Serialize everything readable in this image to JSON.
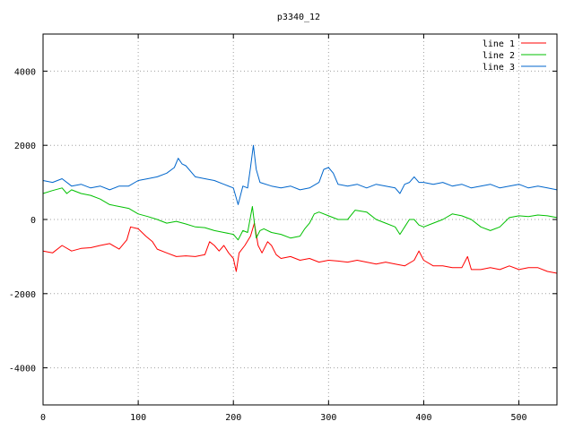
{
  "chart_data": {
    "type": "line",
    "title": "p3340_12",
    "xlabel": "",
    "ylabel": "",
    "xlim": [
      0,
      540
    ],
    "ylim": [
      -5000,
      5000
    ],
    "x_ticks": [
      0,
      100,
      200,
      300,
      400,
      500
    ],
    "y_ticks": [
      -4000,
      -2000,
      0,
      2000,
      4000
    ],
    "grid": true,
    "legend_position": "top-right",
    "series": [
      {
        "name": "line 1",
        "color": "#ff0000",
        "points": [
          [
            0,
            -850
          ],
          [
            10,
            -900
          ],
          [
            20,
            -700
          ],
          [
            30,
            -850
          ],
          [
            40,
            -780
          ],
          [
            50,
            -760
          ],
          [
            60,
            -700
          ],
          [
            70,
            -650
          ],
          [
            80,
            -800
          ],
          [
            88,
            -550
          ],
          [
            92,
            -200
          ],
          [
            100,
            -250
          ],
          [
            108,
            -450
          ],
          [
            115,
            -600
          ],
          [
            120,
            -800
          ],
          [
            130,
            -900
          ],
          [
            140,
            -1000
          ],
          [
            150,
            -980
          ],
          [
            160,
            -1000
          ],
          [
            170,
            -950
          ],
          [
            175,
            -600
          ],
          [
            180,
            -700
          ],
          [
            185,
            -850
          ],
          [
            190,
            -700
          ],
          [
            195,
            -900
          ],
          [
            200,
            -1050
          ],
          [
            203,
            -1400
          ],
          [
            206,
            -900
          ],
          [
            212,
            -700
          ],
          [
            218,
            -450
          ],
          [
            222,
            -100
          ],
          [
            226,
            -700
          ],
          [
            230,
            -900
          ],
          [
            236,
            -600
          ],
          [
            240,
            -700
          ],
          [
            245,
            -950
          ],
          [
            250,
            -1050
          ],
          [
            260,
            -1000
          ],
          [
            270,
            -1100
          ],
          [
            280,
            -1050
          ],
          [
            290,
            -1150
          ],
          [
            300,
            -1100
          ],
          [
            310,
            -1120
          ],
          [
            320,
            -1150
          ],
          [
            330,
            -1100
          ],
          [
            340,
            -1150
          ],
          [
            350,
            -1200
          ],
          [
            360,
            -1150
          ],
          [
            370,
            -1200
          ],
          [
            380,
            -1250
          ],
          [
            390,
            -1100
          ],
          [
            395,
            -850
          ],
          [
            400,
            -1100
          ],
          [
            410,
            -1250
          ],
          [
            420,
            -1250
          ],
          [
            430,
            -1300
          ],
          [
            440,
            -1300
          ],
          [
            446,
            -1000
          ],
          [
            450,
            -1350
          ],
          [
            460,
            -1350
          ],
          [
            470,
            -1300
          ],
          [
            480,
            -1350
          ],
          [
            490,
            -1250
          ],
          [
            500,
            -1350
          ],
          [
            510,
            -1300
          ],
          [
            520,
            -1300
          ],
          [
            530,
            -1400
          ],
          [
            540,
            -1450
          ]
        ]
      },
      {
        "name": "line 2",
        "color": "#00c000",
        "points": [
          [
            0,
            700
          ],
          [
            10,
            780
          ],
          [
            20,
            850
          ],
          [
            25,
            700
          ],
          [
            30,
            800
          ],
          [
            40,
            700
          ],
          [
            50,
            650
          ],
          [
            60,
            550
          ],
          [
            70,
            400
          ],
          [
            80,
            350
          ],
          [
            90,
            300
          ],
          [
            100,
            150
          ],
          [
            110,
            80
          ],
          [
            120,
            0
          ],
          [
            130,
            -100
          ],
          [
            140,
            -50
          ],
          [
            150,
            -120
          ],
          [
            160,
            -200
          ],
          [
            170,
            -220
          ],
          [
            180,
            -300
          ],
          [
            190,
            -350
          ],
          [
            200,
            -400
          ],
          [
            205,
            -550
          ],
          [
            210,
            -300
          ],
          [
            215,
            -350
          ],
          [
            220,
            350
          ],
          [
            224,
            -500
          ],
          [
            228,
            -300
          ],
          [
            232,
            -250
          ],
          [
            240,
            -350
          ],
          [
            250,
            -400
          ],
          [
            260,
            -500
          ],
          [
            270,
            -450
          ],
          [
            275,
            -250
          ],
          [
            280,
            -100
          ],
          [
            285,
            150
          ],
          [
            290,
            200
          ],
          [
            300,
            100
          ],
          [
            310,
            0
          ],
          [
            320,
            0
          ],
          [
            328,
            250
          ],
          [
            340,
            200
          ],
          [
            350,
            0
          ],
          [
            360,
            -100
          ],
          [
            370,
            -200
          ],
          [
            375,
            -400
          ],
          [
            380,
            -200
          ],
          [
            385,
            0
          ],
          [
            390,
            0
          ],
          [
            395,
            -150
          ],
          [
            400,
            -200
          ],
          [
            410,
            -100
          ],
          [
            420,
            0
          ],
          [
            430,
            150
          ],
          [
            440,
            100
          ],
          [
            450,
            0
          ],
          [
            460,
            -200
          ],
          [
            470,
            -300
          ],
          [
            480,
            -200
          ],
          [
            490,
            50
          ],
          [
            500,
            100
          ],
          [
            510,
            80
          ],
          [
            520,
            120
          ],
          [
            530,
            100
          ],
          [
            540,
            50
          ]
        ]
      },
      {
        "name": "line 3",
        "color": "#0066cc",
        "points": [
          [
            0,
            1050
          ],
          [
            10,
            1000
          ],
          [
            20,
            1100
          ],
          [
            30,
            900
          ],
          [
            40,
            950
          ],
          [
            50,
            850
          ],
          [
            60,
            900
          ],
          [
            70,
            800
          ],
          [
            80,
            900
          ],
          [
            90,
            900
          ],
          [
            100,
            1050
          ],
          [
            110,
            1100
          ],
          [
            120,
            1150
          ],
          [
            130,
            1250
          ],
          [
            138,
            1400
          ],
          [
            142,
            1650
          ],
          [
            146,
            1500
          ],
          [
            150,
            1450
          ],
          [
            160,
            1150
          ],
          [
            170,
            1100
          ],
          [
            180,
            1050
          ],
          [
            190,
            950
          ],
          [
            200,
            850
          ],
          [
            205,
            400
          ],
          [
            210,
            900
          ],
          [
            215,
            850
          ],
          [
            218,
            1400
          ],
          [
            221,
            2000
          ],
          [
            224,
            1350
          ],
          [
            228,
            1000
          ],
          [
            240,
            900
          ],
          [
            250,
            850
          ],
          [
            260,
            900
          ],
          [
            270,
            800
          ],
          [
            280,
            850
          ],
          [
            290,
            1000
          ],
          [
            295,
            1350
          ],
          [
            300,
            1400
          ],
          [
            305,
            1250
          ],
          [
            310,
            950
          ],
          [
            320,
            900
          ],
          [
            330,
            950
          ],
          [
            340,
            850
          ],
          [
            350,
            950
          ],
          [
            360,
            900
          ],
          [
            370,
            850
          ],
          [
            375,
            700
          ],
          [
            380,
            950
          ],
          [
            385,
            1000
          ],
          [
            390,
            1150
          ],
          [
            395,
            1000
          ],
          [
            400,
            1000
          ],
          [
            410,
            950
          ],
          [
            420,
            1000
          ],
          [
            430,
            900
          ],
          [
            440,
            950
          ],
          [
            450,
            850
          ],
          [
            460,
            900
          ],
          [
            470,
            950
          ],
          [
            480,
            850
          ],
          [
            490,
            900
          ],
          [
            500,
            950
          ],
          [
            510,
            850
          ],
          [
            520,
            900
          ],
          [
            530,
            850
          ],
          [
            540,
            800
          ]
        ]
      }
    ]
  }
}
